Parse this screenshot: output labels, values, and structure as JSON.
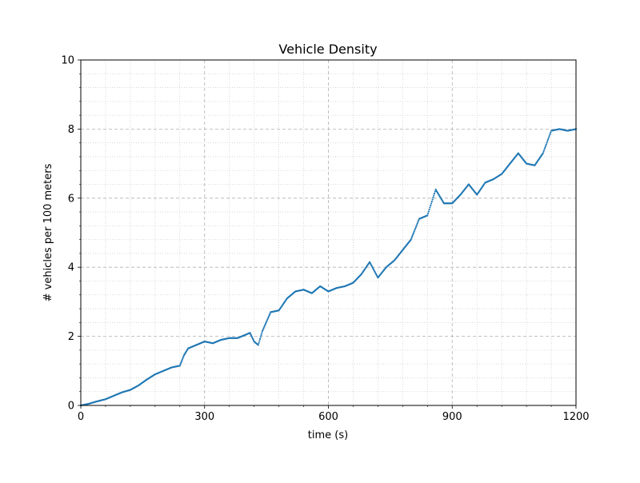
{
  "chart_data": {
    "type": "scatter",
    "title": "Vehicle Density",
    "xlabel": "time (s)",
    "ylabel": "# vehicles per 100 meters",
    "xlim": [
      0,
      1200
    ],
    "ylim": [
      0,
      10
    ],
    "xticks": [
      0,
      300,
      600,
      900,
      1200
    ],
    "yticks": [
      0,
      2,
      4,
      6,
      8,
      10
    ],
    "grid": "major dashed, minor dotted",
    "colors": {
      "series": "#1f77b4",
      "major_grid": "#b0b0b0",
      "minor_grid": "#d0d0d0"
    },
    "series": [
      {
        "name": "",
        "x": [
          0,
          20,
          40,
          60,
          80,
          100,
          120,
          140,
          160,
          180,
          200,
          220,
          240,
          250,
          260,
          280,
          300,
          320,
          340,
          360,
          380,
          400,
          410,
          420,
          430,
          440,
          460,
          480,
          500,
          520,
          540,
          560,
          580,
          600,
          620,
          640,
          660,
          680,
          700,
          720,
          740,
          760,
          780,
          800,
          820,
          840,
          860,
          880,
          900,
          920,
          940,
          960,
          980,
          1000,
          1020,
          1040,
          1060,
          1080,
          1100,
          1120,
          1140,
          1160,
          1180,
          1200
        ],
        "y": [
          0,
          0.05,
          0.12,
          0.18,
          0.28,
          0.38,
          0.45,
          0.58,
          0.75,
          0.9,
          1.0,
          1.1,
          1.15,
          1.45,
          1.65,
          1.75,
          1.85,
          1.8,
          1.9,
          1.95,
          1.95,
          2.05,
          2.1,
          1.85,
          1.75,
          2.15,
          2.7,
          2.75,
          3.1,
          3.3,
          3.35,
          3.25,
          3.45,
          3.3,
          3.4,
          3.45,
          3.55,
          3.8,
          4.15,
          3.7,
          4.0,
          4.2,
          4.5,
          4.8,
          5.4,
          5.5,
          6.25,
          5.85,
          5.85,
          6.1,
          6.4,
          6.1,
          6.45,
          6.55,
          6.7,
          7.0,
          7.3,
          7.0,
          6.95,
          7.3,
          7.95,
          8.0,
          7.95,
          8.0
        ]
      }
    ]
  }
}
